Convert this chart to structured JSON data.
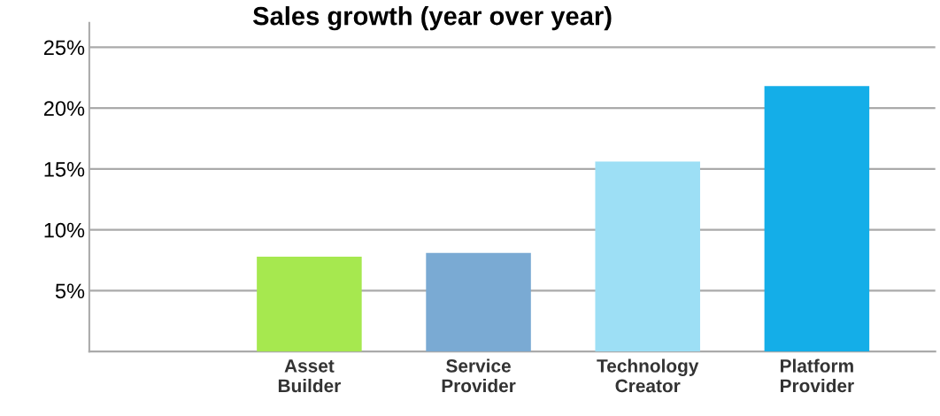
{
  "chart_data": {
    "type": "bar",
    "title": "Sales growth (year over year)",
    "categories": [
      "Asset\nBuilder",
      "Service\nProvider",
      "Technology\nCreator",
      "Platform\nProvider"
    ],
    "values": [
      7.8,
      8.1,
      15.6,
      21.8
    ],
    "colors": [
      "#a6e84f",
      "#7aaad3",
      "#9ddff5",
      "#14aee8"
    ],
    "ylim": [
      0,
      27
    ],
    "yticks": [
      {
        "value": 5,
        "label": "5%"
      },
      {
        "value": 10,
        "label": "10%"
      },
      {
        "value": 15,
        "label": "15%"
      },
      {
        "value": 20,
        "label": "20%"
      },
      {
        "value": 25,
        "label": "25%"
      }
    ],
    "grid": "y"
  }
}
